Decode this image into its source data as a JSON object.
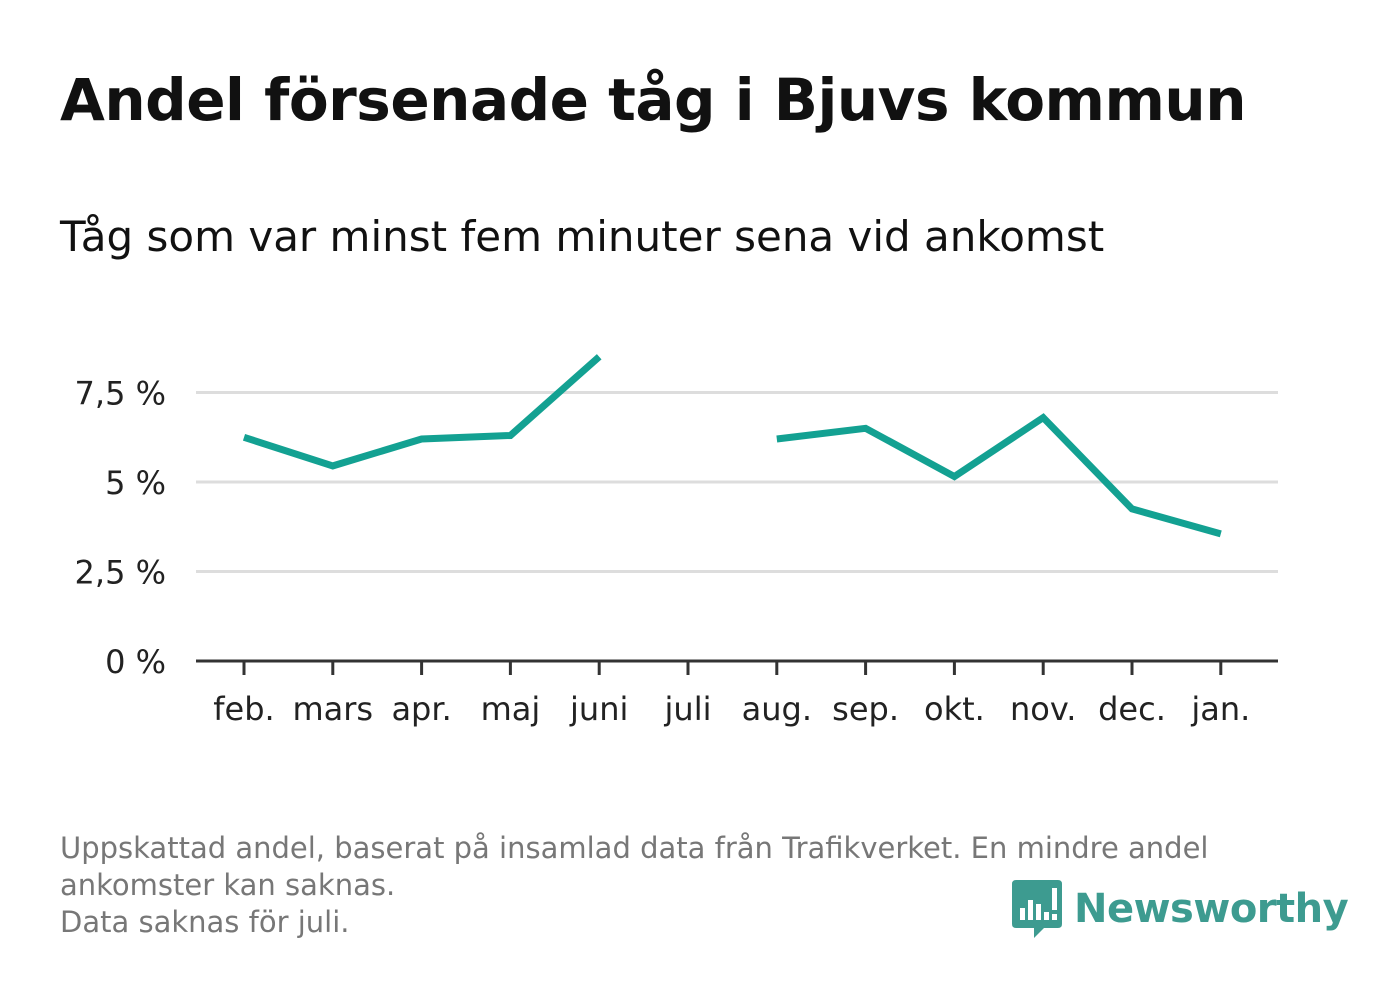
{
  "title": "Andel försenade tåg i Bjuvs kommun",
  "subtitle": "Tåg som var minst fem minuter sena vid ankomst",
  "footnote": {
    "line1": "Uppskattad andel, baserat på insamlad data från Trafikverket. En mindre andel",
    "line2": "ankomster kan saknas.",
    "line3": "Data saknas för juli."
  },
  "brand": {
    "name": "Newsworthy",
    "icon": "newsworthy-logo-icon"
  },
  "colors": {
    "line": "#13a192",
    "grid": "#dddddd",
    "axis": "#333333",
    "brand": "#3d9b90"
  },
  "chart_data": {
    "type": "line",
    "categories": [
      "feb.",
      "mars",
      "apr.",
      "maj",
      "juni",
      "juli",
      "aug.",
      "sep.",
      "okt.",
      "nov.",
      "dec.",
      "jan."
    ],
    "series": [
      {
        "values": [
          6.25,
          5.45,
          6.2,
          6.3,
          8.5,
          null,
          6.2,
          6.5,
          5.15,
          6.8,
          4.25,
          3.55
        ]
      }
    ],
    "yticks": [
      0,
      2.5,
      5,
      7.5
    ],
    "ytick_labels": [
      "0 %",
      "2,5 %",
      "5 %",
      "7,5 %"
    ],
    "ylim": [
      0,
      9
    ],
    "grid": true,
    "legend": "none"
  }
}
